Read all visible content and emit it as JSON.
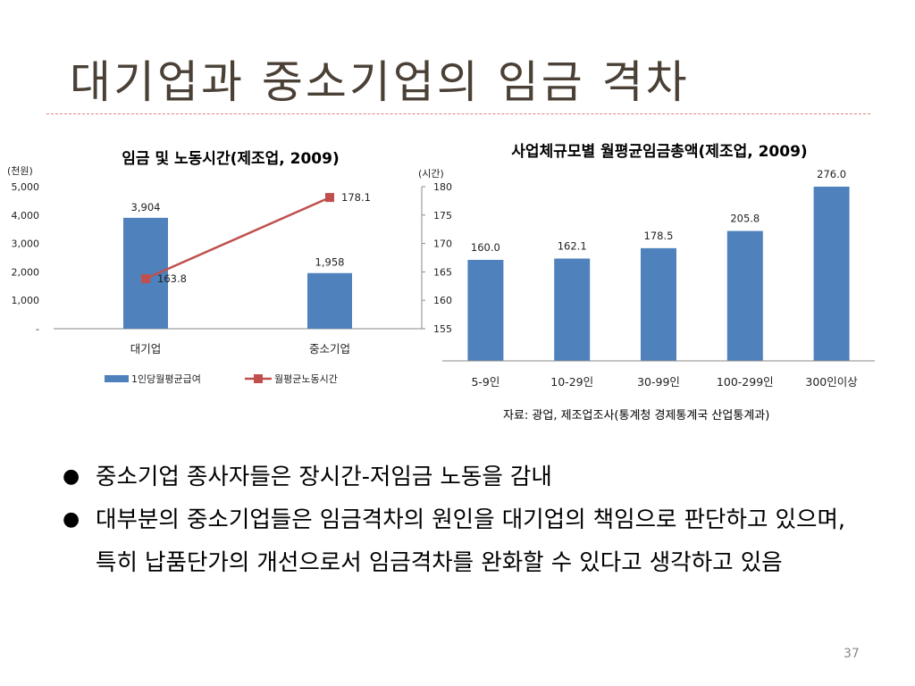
{
  "slide": {
    "title": "대기업과 중소기업의 임금 격차",
    "source": "자료: 광업, 제조업조사(통계청 경제통계국 산업통계과)",
    "bullets": [
      "중소기업 종사자들은 장시간-저임금 노동을 감내",
      "대부분의 중소기업들은 임금격차의 원인을 대기업의 책임으로 판단하고 있으며, 특히 납품단가의 개선으로서 임금격차를 완화할 수 있다고 생각하고 있음"
    ],
    "page_number": "37"
  },
  "colors": {
    "bar": "#4f81bd",
    "line": "#c0504d",
    "divider": "#e2807a",
    "title": "#4a4036"
  },
  "chart_data": [
    {
      "type": "bar+line",
      "title": "임금 및 노동시간(제조업, 2009)",
      "categories": [
        "대기업",
        "중소기업"
      ],
      "y_left": {
        "unit_label": "(천원)",
        "ylim": [
          0,
          5000
        ],
        "ticks": [
          "-",
          "1,000",
          "2,000",
          "3,000",
          "4,000",
          "5,000"
        ],
        "tick_values": [
          0,
          1000,
          2000,
          3000,
          4000,
          5000
        ]
      },
      "y_right": {
        "unit_label": "(시간)",
        "ylim": [
          155,
          180
        ],
        "ticks": [
          "155",
          "160",
          "165",
          "170",
          "175",
          "180"
        ],
        "tick_values": [
          155,
          160,
          165,
          170,
          175,
          180
        ]
      },
      "series": [
        {
          "name": "1인당월평균급여",
          "type": "bar",
          "axis": "left",
          "values": [
            3904,
            1958
          ],
          "labels": [
            "3,904",
            "1,958"
          ]
        },
        {
          "name": "월평균노동시간",
          "type": "line",
          "axis": "right",
          "values": [
            163.8,
            178.1
          ],
          "labels": [
            "163.8",
            "178.1"
          ]
        }
      ],
      "legend": "bottom"
    },
    {
      "type": "bar",
      "title": "사업체규모별 월평균임금총액(제조업, 2009)",
      "categories": [
        "5-9인",
        "10-29인",
        "30-99인",
        "100-299인",
        "300인이상"
      ],
      "values": [
        160.0,
        162.1,
        178.5,
        205.8,
        276.0
      ],
      "labels": [
        "160.0",
        "162.1",
        "178.5",
        "205.8",
        "276.0"
      ],
      "ylim": [
        0,
        300
      ]
    }
  ]
}
